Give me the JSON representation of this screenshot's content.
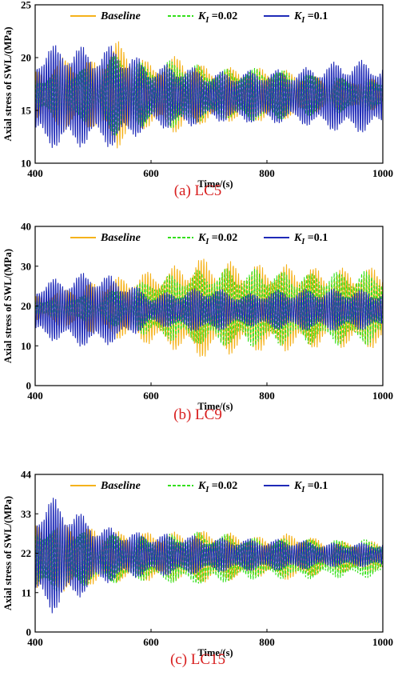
{
  "chart_data": [
    {
      "type": "line",
      "caption": "(a) LC5",
      "xlabel": "Time/(s)",
      "ylabel": "Axial stress of SWL/(MPa)",
      "xlim": [
        400,
        1000
      ],
      "ylim": [
        10,
        25
      ],
      "xticks": [
        "400",
        "600",
        "800",
        "1000"
      ],
      "yticks": [
        "10",
        "15",
        "20",
        "25"
      ],
      "legend": "top",
      "series": [
        {
          "name": "Baseline",
          "style": "solid",
          "color": "#f5b21b",
          "mean": 16.5,
          "envelope": [
            [
              400,
              2.2
            ],
            [
              450,
              3.6
            ],
            [
              500,
              3.2
            ],
            [
              540,
              5.2
            ],
            [
              600,
              3.0
            ],
            [
              650,
              3.8
            ],
            [
              700,
              2.6
            ],
            [
              800,
              2.6
            ],
            [
              850,
              2.2
            ],
            [
              900,
              1.6
            ],
            [
              950,
              1.6
            ],
            [
              1000,
              1.5
            ]
          ]
        },
        {
          "name": "K₁ =0.02",
          "style": "dashed",
          "color": "#33e01a",
          "mean": 16.5,
          "envelope": [
            [
              400,
              1.6
            ],
            [
              450,
              2.6
            ],
            [
              500,
              2.6
            ],
            [
              540,
              4.0
            ],
            [
              600,
              2.8
            ],
            [
              650,
              3.5
            ],
            [
              700,
              2.4
            ],
            [
              800,
              2.6
            ],
            [
              850,
              2.2
            ],
            [
              900,
              1.8
            ],
            [
              950,
              1.7
            ],
            [
              1000,
              1.5
            ]
          ]
        },
        {
          "name": "K₁ =0.1",
          "style": "solid",
          "color": "#1f2ab8",
          "mean": 16.3,
          "envelope": [
            [
              400,
              4.5
            ],
            [
              450,
              5.2
            ],
            [
              500,
              4.6
            ],
            [
              540,
              5.0
            ],
            [
              600,
              3.0
            ],
            [
              650,
              3.2
            ],
            [
              700,
              2.4
            ],
            [
              800,
              2.6
            ],
            [
              850,
              2.6
            ],
            [
              900,
              3.2
            ],
            [
              950,
              3.6
            ],
            [
              1000,
              3.2
            ]
          ]
        }
      ]
    },
    {
      "type": "line",
      "caption": "(b) LC9",
      "xlabel": "Time/(s)",
      "ylabel": "Axial stress of SWL/(MPa)",
      "xlim": [
        400,
        1000
      ],
      "ylim": [
        0,
        40
      ],
      "xticks": [
        "400",
        "600",
        "800",
        "1000"
      ],
      "yticks": [
        "0",
        "10",
        "20",
        "30",
        "40"
      ],
      "legend": "top",
      "series": [
        {
          "name": "Baseline",
          "style": "solid",
          "color": "#f5b21b",
          "mean": 19.5,
          "envelope": [
            [
              400,
              3.0
            ],
            [
              450,
              5.0
            ],
            [
              500,
              6.5
            ],
            [
              550,
              8.0
            ],
            [
              600,
              9.5
            ],
            [
              650,
              11.0
            ],
            [
              680,
              13.0
            ],
            [
              720,
              12.0
            ],
            [
              800,
              11.0
            ],
            [
              850,
              11.0
            ],
            [
              900,
              10.0
            ],
            [
              1000,
              10.5
            ]
          ]
        },
        {
          "name": "K₁ =0.02",
          "style": "dashed",
          "color": "#33e01a",
          "mean": 19.5,
          "envelope": [
            [
              400,
              2.0
            ],
            [
              450,
              3.0
            ],
            [
              500,
              3.5
            ],
            [
              550,
              5.0
            ],
            [
              600,
              7.5
            ],
            [
              650,
              9.0
            ],
            [
              700,
              10.0
            ],
            [
              800,
              10.0
            ],
            [
              850,
              9.0
            ],
            [
              900,
              9.5
            ],
            [
              1000,
              9.5
            ]
          ]
        },
        {
          "name": "K₁ =0.1",
          "style": "solid",
          "color": "#1f2ab8",
          "mean": 19.0,
          "envelope": [
            [
              400,
              7.0
            ],
            [
              450,
              8.5
            ],
            [
              500,
              10.0
            ],
            [
              550,
              8.0
            ],
            [
              600,
              4.0
            ],
            [
              650,
              5.0
            ],
            [
              700,
              6.0
            ],
            [
              760,
              4.0
            ],
            [
              800,
              5.0
            ],
            [
              900,
              5.5
            ],
            [
              1000,
              5.0
            ]
          ]
        }
      ]
    },
    {
      "type": "line",
      "caption": "(c) LC15",
      "xlabel": "Time/(s)",
      "ylabel": "Axial stress of SWL/(MPa)",
      "xlim": [
        400,
        1000
      ],
      "ylim": [
        0,
        44
      ],
      "xticks": [
        "400",
        "600",
        "800",
        "1000"
      ],
      "yticks": [
        "0",
        "11",
        "22",
        "33",
        "44"
      ],
      "legend": "top",
      "series": [
        {
          "name": "Baseline",
          "style": "solid",
          "color": "#f5b21b",
          "mean": 21.0,
          "envelope": [
            [
              400,
              9.0
            ],
            [
              450,
              10.0
            ],
            [
              500,
              8.0
            ],
            [
              550,
              7.0
            ],
            [
              600,
              7.0
            ],
            [
              650,
              7.0
            ],
            [
              700,
              7.5
            ],
            [
              800,
              5.5
            ],
            [
              850,
              7.0
            ],
            [
              900,
              4.5
            ],
            [
              1000,
              4.5
            ]
          ]
        },
        {
          "name": "K₁ =0.02",
          "style": "dashed",
          "color": "#33e01a",
          "mean": 20.5,
          "envelope": [
            [
              400,
              9.0
            ],
            [
              450,
              9.5
            ],
            [
              500,
              7.0
            ],
            [
              550,
              7.0
            ],
            [
              600,
              6.0
            ],
            [
              650,
              7.5
            ],
            [
              700,
              7.5
            ],
            [
              800,
              5.5
            ],
            [
              850,
              6.0
            ],
            [
              900,
              5.5
            ],
            [
              1000,
              5.5
            ]
          ]
        },
        {
          "name": "K₁ =0.1",
          "style": "solid",
          "color": "#1f2ab8",
          "mean": 21.5,
          "envelope": [
            [
              400,
              14.0
            ],
            [
              430,
              16.5
            ],
            [
              470,
              13.0
            ],
            [
              500,
              9.0
            ],
            [
              550,
              7.0
            ],
            [
              600,
              6.0
            ],
            [
              650,
              6.0
            ],
            [
              700,
              5.0
            ],
            [
              800,
              4.5
            ],
            [
              850,
              4.5
            ],
            [
              900,
              3.5
            ],
            [
              1000,
              3.5
            ]
          ]
        }
      ]
    }
  ]
}
